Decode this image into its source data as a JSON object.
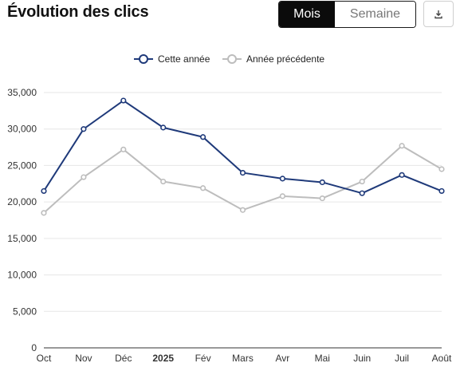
{
  "header": {
    "title": "Évolution des clics",
    "toggle_month": "Mois",
    "toggle_week": "Semaine",
    "download_icon": "download-icon"
  },
  "colors": {
    "current": "#1f3a7a",
    "previous": "#bdbdbd",
    "grid": "#e6e6e6"
  },
  "chart_data": {
    "type": "line",
    "categories": [
      "Oct",
      "Nov",
      "Déc",
      "2025",
      "Fév",
      "Mars",
      "Avr",
      "Mai",
      "Juin",
      "Juil",
      "Août"
    ],
    "bold_categories": [
      "2025"
    ],
    "series": [
      {
        "name": "Cette année",
        "values": [
          21500,
          30000,
          33900,
          30200,
          28900,
          24000,
          23200,
          22700,
          21200,
          23700,
          21500
        ]
      },
      {
        "name": "Année précédente",
        "values": [
          18500,
          23400,
          27200,
          22800,
          21900,
          18900,
          20800,
          20500,
          22800,
          27700,
          24500
        ]
      }
    ],
    "ylim": [
      0,
      35000
    ],
    "yticks": [
      "0",
      "5,000",
      "10,000",
      "15,000",
      "20,000",
      "25,000",
      "30,000",
      "35,000"
    ],
    "ytick_values": [
      0,
      5000,
      10000,
      15000,
      20000,
      25000,
      30000,
      35000
    ],
    "grid": true,
    "legend_position": "top-center"
  }
}
